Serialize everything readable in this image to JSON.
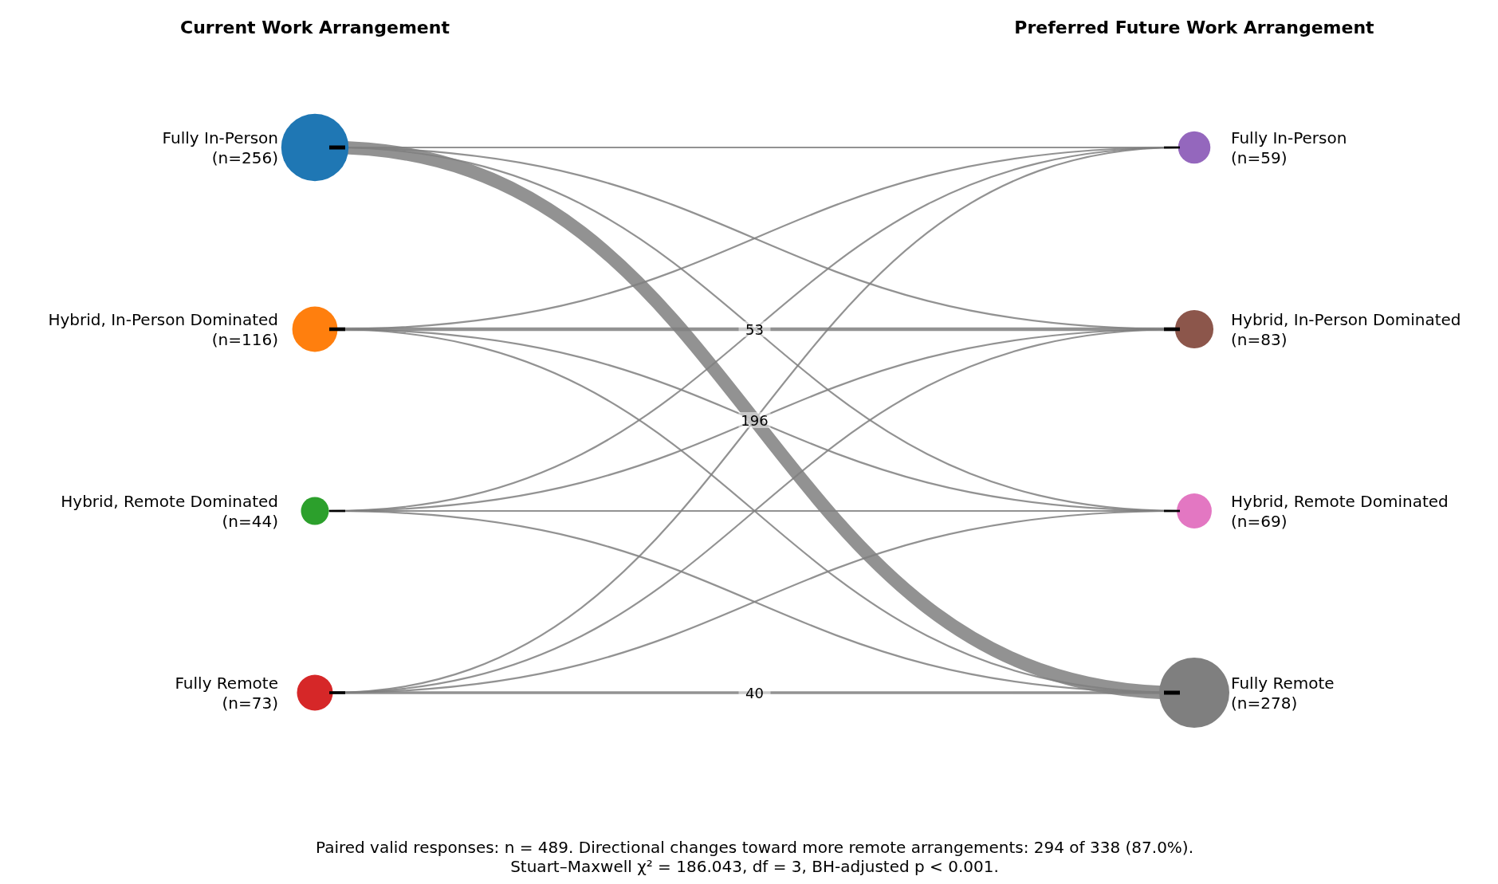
{
  "chart_data": {
    "type": "other",
    "categories": [
      "Fully In-Person",
      "Hybrid, In-Person Dominated",
      "Hybrid, Remote Dominated",
      "Fully Remote"
    ],
    "series": [
      {
        "name": "Current Work Arrangement",
        "values": [
          256,
          116,
          44,
          73
        ],
        "value_labels": [
          "(n=256)",
          "(n=116)",
          "(n=44)",
          "(n=73)"
        ],
        "colors": [
          "#1f77b4",
          "#ff7f0e",
          "#2ca02c",
          "#d62728"
        ]
      },
      {
        "name": "Preferred Future Work Arrangement",
        "values": [
          59,
          83,
          69,
          278
        ],
        "value_labels": [
          "(n=59)",
          "(n=83)",
          "(n=69)",
          "(n=278)"
        ],
        "colors": [
          "#9467bd",
          "#8c564b",
          "#e377c2",
          "#7f7f7f"
        ]
      }
    ],
    "cell_labels": [
      [
        null,
        null,
        null,
        "196"
      ],
      [
        null,
        "53",
        null,
        null
      ],
      [
        null,
        null,
        null,
        null
      ],
      [
        null,
        null,
        null,
        "40"
      ]
    ],
    "annotations": [
      "Paired valid responses: n = 489. Directional changes toward more remote arrangements: 294 of 338 (87.0%).",
      "Stuart–Maxwell χ² = 186.043, df = 3, BH-adjusted p < 0.001."
    ]
  }
}
